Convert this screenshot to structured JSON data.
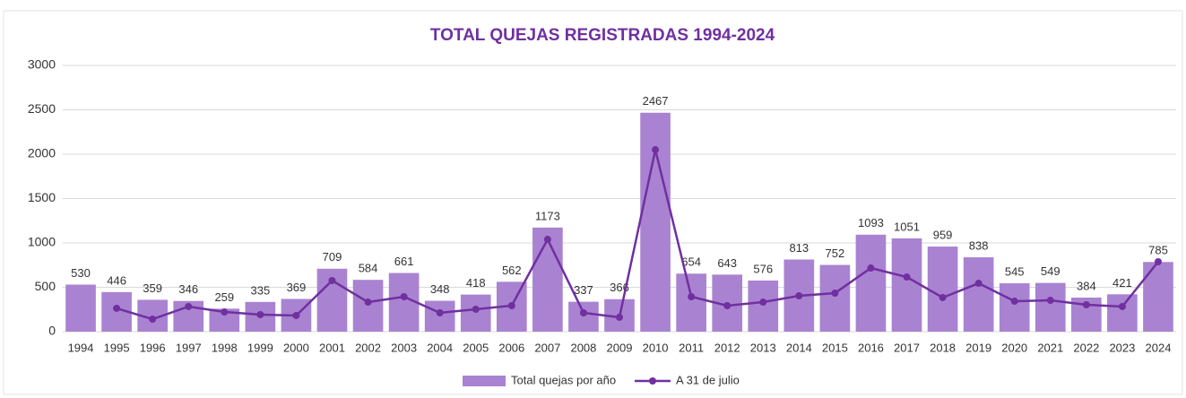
{
  "chart_data": {
    "type": "bar-line",
    "title": "TOTAL QUEJAS REGISTRADAS 1994-2024",
    "categories": [
      "1994",
      "1995",
      "1996",
      "1997",
      "1998",
      "1999",
      "2000",
      "2001",
      "2002",
      "2003",
      "2004",
      "2005",
      "2006",
      "2007",
      "2008",
      "2009",
      "2010",
      "2011",
      "2012",
      "2013",
      "2014",
      "2015",
      "2016",
      "2017",
      "2018",
      "2019",
      "2020",
      "2021",
      "2022",
      "2023",
      "2024"
    ],
    "series": [
      {
        "name": "Total quejas por año",
        "type": "bar",
        "color": "#a983d1",
        "values": [
          530,
          446,
          359,
          346,
          259,
          335,
          369,
          709,
          584,
          661,
          348,
          418,
          562,
          1173,
          337,
          366,
          2467,
          654,
          643,
          576,
          813,
          752,
          1093,
          1051,
          959,
          838,
          545,
          549,
          384,
          421,
          785
        ]
      },
      {
        "name": "A 31 de julio",
        "type": "line",
        "color": "#7030a0",
        "values": [
          null,
          263,
          141,
          283,
          222,
          192,
          182,
          576,
          333,
          394,
          212,
          253,
          293,
          1040,
          212,
          162,
          2050,
          394,
          293,
          333,
          404,
          434,
          717,
          616,
          384,
          545,
          343,
          353,
          303,
          283,
          788
        ]
      }
    ],
    "ylim": [
      0,
      3000
    ],
    "yticks": [
      0,
      500,
      1000,
      1500,
      2000,
      2500,
      3000
    ],
    "grid": true,
    "legend": "bottom"
  }
}
